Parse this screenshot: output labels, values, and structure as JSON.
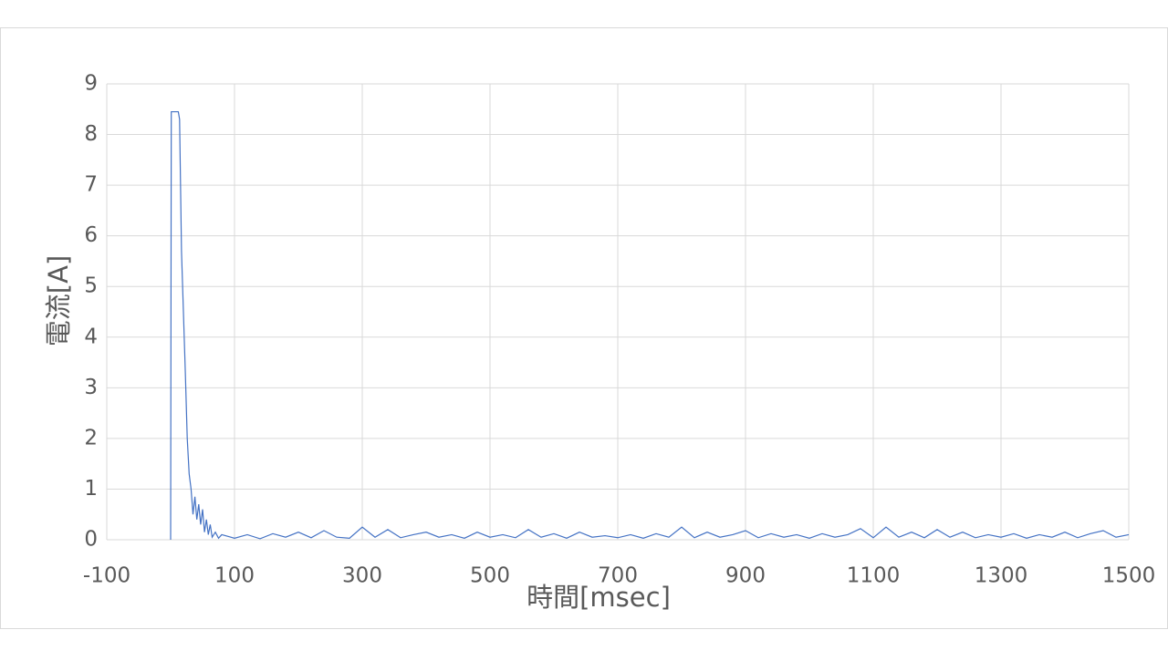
{
  "chart_data": {
    "type": "line",
    "x_label": "時間[msec]",
    "y_label": "電流[A]",
    "xlim": [
      -100,
      1500
    ],
    "xticks": [
      -100,
      100,
      300,
      500,
      700,
      900,
      1100,
      1300,
      1500
    ],
    "ylim": [
      0,
      9
    ],
    "yticks": [
      0,
      1,
      2,
      3,
      4,
      5,
      6,
      7,
      8,
      9
    ],
    "grid": true,
    "series": [
      {
        "color": "#4472c4",
        "x": [
          0,
          1,
          12,
          14,
          17,
          20,
          23,
          26,
          29,
          32,
          35,
          38,
          41,
          44,
          47,
          50,
          53,
          56,
          59,
          62,
          65,
          70,
          75,
          80,
          100,
          120,
          140,
          160,
          180,
          200,
          220,
          240,
          260,
          280,
          300,
          320,
          340,
          360,
          380,
          400,
          420,
          440,
          460,
          480,
          500,
          520,
          540,
          560,
          580,
          600,
          620,
          640,
          660,
          680,
          700,
          720,
          740,
          760,
          780,
          800,
          820,
          840,
          860,
          880,
          900,
          920,
          940,
          960,
          980,
          1000,
          1020,
          1040,
          1060,
          1080,
          1100,
          1120,
          1140,
          1160,
          1180,
          1200,
          1220,
          1240,
          1260,
          1280,
          1300,
          1320,
          1340,
          1360,
          1380,
          1400,
          1420,
          1440,
          1460,
          1480,
          1500
        ],
        "values": [
          0,
          8.45,
          8.45,
          8.3,
          5.7,
          4.5,
          3.3,
          2.0,
          1.3,
          1.0,
          0.5,
          0.85,
          0.4,
          0.7,
          0.3,
          0.6,
          0.15,
          0.4,
          0.1,
          0.3,
          0.05,
          0.15,
          0.03,
          0.1,
          0.03,
          0.1,
          0.02,
          0.12,
          0.05,
          0.15,
          0.04,
          0.18,
          0.05,
          0.03,
          0.25,
          0.05,
          0.2,
          0.04,
          0.1,
          0.15,
          0.05,
          0.1,
          0.03,
          0.15,
          0.05,
          0.1,
          0.04,
          0.2,
          0.05,
          0.12,
          0.03,
          0.15,
          0.05,
          0.08,
          0.04,
          0.1,
          0.03,
          0.12,
          0.05,
          0.25,
          0.04,
          0.15,
          0.05,
          0.1,
          0.18,
          0.04,
          0.12,
          0.05,
          0.1,
          0.03,
          0.12,
          0.05,
          0.1,
          0.22,
          0.04,
          0.25,
          0.05,
          0.15,
          0.04,
          0.2,
          0.05,
          0.15,
          0.04,
          0.1,
          0.05,
          0.12,
          0.03,
          0.1,
          0.05,
          0.15,
          0.04,
          0.12,
          0.18,
          0.05,
          0.1
        ]
      }
    ]
  }
}
